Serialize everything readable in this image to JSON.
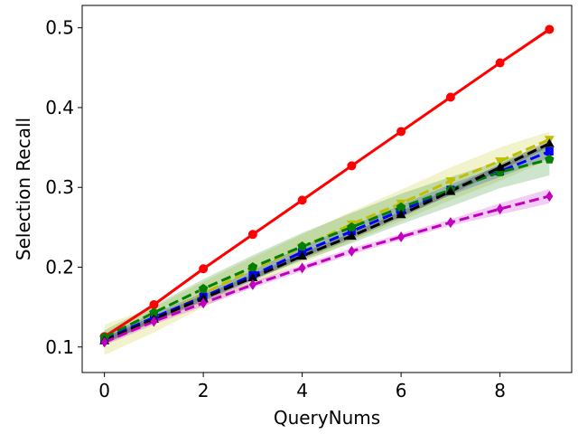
{
  "chart_data": {
    "type": "line",
    "title": "",
    "xlabel": "QueryNums",
    "ylabel": "Selection Recall",
    "xlim": [
      -0.45,
      9.45
    ],
    "ylim": [
      0.068,
      0.528
    ],
    "xticks": [
      0,
      2,
      4,
      6,
      8
    ],
    "xtick_labels": [
      "0",
      "2",
      "4",
      "6",
      "8"
    ],
    "yticks": [
      0.1,
      0.2,
      0.3,
      0.4,
      0.5
    ],
    "ytick_labels": [
      "0.1",
      "0.2",
      "0.3",
      "0.4",
      "0.5"
    ],
    "grid": false,
    "legend": "none",
    "x": [
      0,
      1,
      2,
      3,
      4,
      5,
      6,
      7,
      8,
      9
    ],
    "series": [
      {
        "color": "#ff0000",
        "linestyle": "solid",
        "marker": "circle",
        "values": [
          0.113,
          0.153,
          0.198,
          0.241,
          0.284,
          0.327,
          0.37,
          0.413,
          0.456,
          0.498
        ],
        "lower": [
          0.111,
          0.151,
          0.196,
          0.239,
          0.282,
          0.325,
          0.368,
          0.411,
          0.454,
          0.495
        ],
        "upper": [
          0.115,
          0.155,
          0.2,
          0.243,
          0.286,
          0.329,
          0.372,
          0.415,
          0.458,
          0.501
        ]
      },
      {
        "color": "#bfbf00",
        "linestyle": "dashed",
        "marker": "triangle-down",
        "values": [
          0.109,
          0.135,
          0.167,
          0.197,
          0.225,
          0.254,
          0.28,
          0.308,
          0.333,
          0.36
        ],
        "lower": [
          0.09,
          0.118,
          0.15,
          0.178,
          0.205,
          0.232,
          0.258,
          0.284,
          0.308,
          0.335
        ],
        "upper": [
          0.128,
          0.15,
          0.182,
          0.212,
          0.241,
          0.27,
          0.297,
          0.325,
          0.35,
          0.37
        ]
      },
      {
        "color": "#0000ff",
        "linestyle": "dashed",
        "marker": "square",
        "values": [
          0.11,
          0.137,
          0.163,
          0.19,
          0.219,
          0.245,
          0.271,
          0.297,
          0.32,
          0.345
        ],
        "lower": [
          0.105,
          0.132,
          0.158,
          0.184,
          0.212,
          0.238,
          0.264,
          0.29,
          0.313,
          0.337
        ],
        "upper": [
          0.115,
          0.142,
          0.168,
          0.196,
          0.226,
          0.252,
          0.278,
          0.304,
          0.327,
          0.353
        ]
      },
      {
        "color": "#007f00",
        "linestyle": "dashed",
        "marker": "pentagon",
        "values": [
          0.112,
          0.143,
          0.173,
          0.2,
          0.226,
          0.25,
          0.275,
          0.297,
          0.319,
          0.335
        ],
        "lower": [
          0.103,
          0.133,
          0.16,
          0.185,
          0.208,
          0.23,
          0.254,
          0.276,
          0.299,
          0.315
        ],
        "upper": [
          0.121,
          0.152,
          0.185,
          0.215,
          0.243,
          0.268,
          0.292,
          0.313,
          0.333,
          0.355
        ]
      },
      {
        "color": "#000000",
        "linestyle": "dashed",
        "marker": "triangle-up",
        "values": [
          0.108,
          0.135,
          0.161,
          0.187,
          0.214,
          0.239,
          0.266,
          0.295,
          0.325,
          0.355
        ],
        "lower": [
          0.104,
          0.131,
          0.157,
          0.183,
          0.21,
          0.235,
          0.262,
          0.291,
          0.321,
          0.351
        ],
        "upper": [
          0.112,
          0.139,
          0.165,
          0.191,
          0.218,
          0.243,
          0.27,
          0.299,
          0.329,
          0.359
        ]
      },
      {
        "color": "#bf00bf",
        "linestyle": "dashed",
        "marker": "diamond",
        "values": [
          0.106,
          0.132,
          0.155,
          0.178,
          0.199,
          0.22,
          0.238,
          0.256,
          0.273,
          0.289
        ],
        "lower": [
          0.102,
          0.128,
          0.151,
          0.174,
          0.195,
          0.216,
          0.234,
          0.252,
          0.266,
          0.28
        ],
        "upper": [
          0.11,
          0.136,
          0.159,
          0.182,
          0.203,
          0.224,
          0.242,
          0.26,
          0.28,
          0.298
        ]
      }
    ]
  }
}
